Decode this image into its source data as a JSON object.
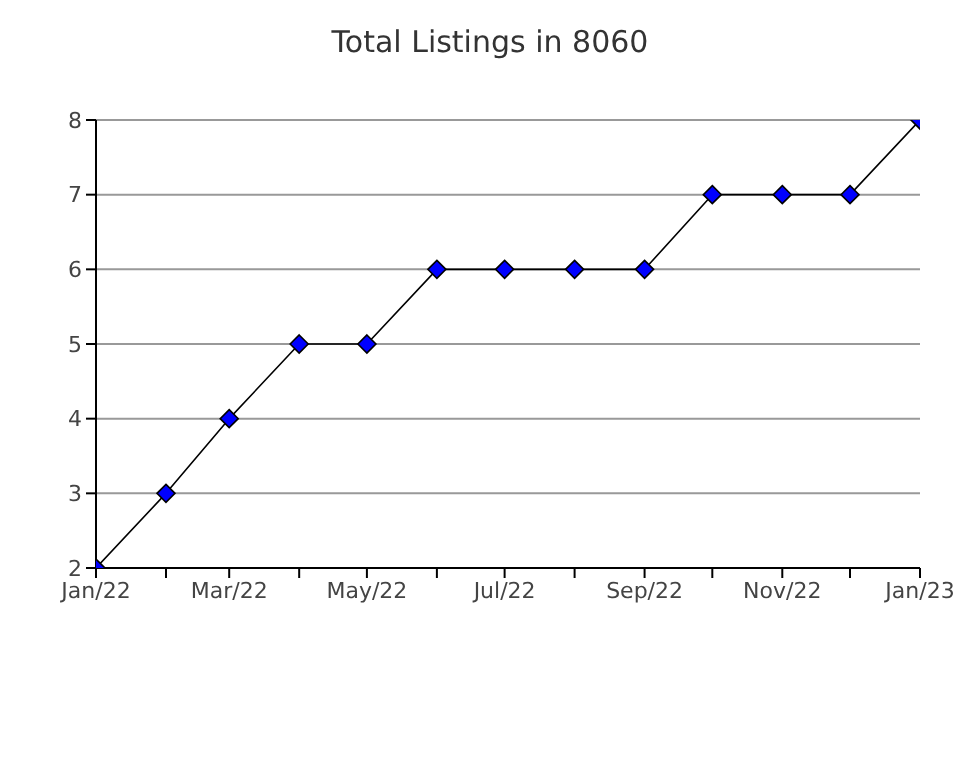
{
  "chart_data": {
    "type": "line",
    "title": "Total Listings in 8060",
    "x": [
      "2022-01",
      "2022-02",
      "2022-03",
      "2022-04",
      "2022-05",
      "2022-06",
      "2022-07",
      "2022-08",
      "2022-09",
      "2022-10",
      "2022-11",
      "2022-12",
      "2023-01"
    ],
    "series": [
      {
        "color": "#0000ff",
        "values": [
          2,
          3,
          4,
          5,
          5,
          6,
          6,
          6,
          6,
          7,
          7,
          7,
          8
        ]
      }
    ],
    "xlim": [
      "2022-01",
      "2023-01"
    ],
    "xticks": [
      {
        "value": "2022-01",
        "label": "Jan/22"
      },
      {
        "value": "2022-02",
        "label": null
      },
      {
        "value": "2022-03",
        "label": "Mar/22"
      },
      {
        "value": "2022-04",
        "label": null
      },
      {
        "value": "2022-05",
        "label": "May/22"
      },
      {
        "value": "2022-06",
        "label": null
      },
      {
        "value": "2022-07",
        "label": "Jul/22"
      },
      {
        "value": "2022-08",
        "label": null
      },
      {
        "value": "2022-09",
        "label": "Sep/22"
      },
      {
        "value": "2022-10",
        "label": null
      },
      {
        "value": "2022-11",
        "label": "Nov/22"
      },
      {
        "value": "2022-12",
        "label": null
      },
      {
        "value": "2023-01",
        "label": "Jan/23"
      }
    ],
    "ylim": [
      2,
      8
    ],
    "yticks": [
      2,
      3,
      4,
      5,
      6,
      7,
      8
    ],
    "grid": "y",
    "marker": "diamond",
    "line_style": "solid",
    "legend": false
  }
}
